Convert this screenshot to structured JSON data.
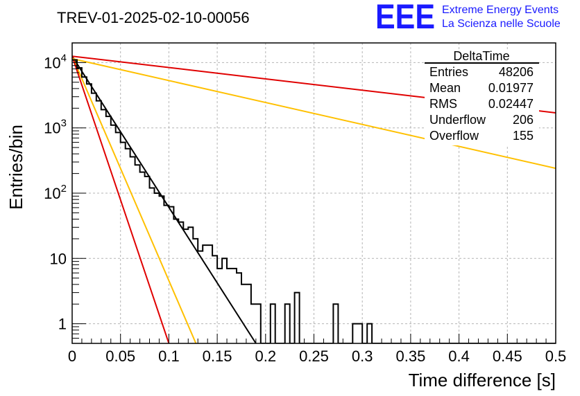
{
  "header": {
    "run_title": "TREV-01-2025-02-10-00056"
  },
  "logo": {
    "letters": "EEE",
    "line1": "Extreme Energy Events",
    "line2": "La Scienza nelle Scuole",
    "color": "#1a1aff"
  },
  "stats": {
    "name": "DeltaTime",
    "rows": [
      {
        "label": "Entries",
        "value": "48206"
      },
      {
        "label": "Mean",
        "value": "0.01977"
      },
      {
        "label": "RMS",
        "value": "0.02447"
      },
      {
        "label": "Underflow",
        "value": "206"
      },
      {
        "label": "Overflow",
        "value": "155"
      }
    ]
  },
  "chart_data": {
    "type": "line",
    "xlabel": "Time difference [s]",
    "ylabel": "Entries/bin",
    "xlim": [
      0,
      0.5
    ],
    "ylim": [
      0.5,
      20000
    ],
    "log_y": true,
    "grid": true,
    "x_ticks": [
      {
        "v": 0,
        "label": "0"
      },
      {
        "v": 0.05,
        "label": "0.05"
      },
      {
        "v": 0.1,
        "label": "0.1"
      },
      {
        "v": 0.15,
        "label": "0.15"
      },
      {
        "v": 0.2,
        "label": "0.2"
      },
      {
        "v": 0.25,
        "label": "0.25"
      },
      {
        "v": 0.3,
        "label": "0.3"
      },
      {
        "v": 0.35,
        "label": "0.35"
      },
      {
        "v": 0.4,
        "label": "0.4"
      },
      {
        "v": 0.45,
        "label": "0.45"
      },
      {
        "v": 0.5,
        "label": "0.5"
      }
    ],
    "y_ticks": [
      {
        "v": 1,
        "base": "1",
        "exp": ""
      },
      {
        "v": 10,
        "base": "10",
        "exp": ""
      },
      {
        "v": 100,
        "base": "10",
        "exp": "2"
      },
      {
        "v": 1000,
        "base": "10",
        "exp": "3"
      },
      {
        "v": 10000,
        "base": "10",
        "exp": "4"
      }
    ],
    "histogram": {
      "bin_width": 0.005,
      "color": "#000000",
      "counts": [
        11000,
        8300,
        6000,
        4700,
        3400,
        2600,
        1900,
        1500,
        1100,
        850,
        600,
        480,
        360,
        270,
        210,
        180,
        120,
        100,
        90,
        65,
        62,
        40,
        36,
        28,
        30,
        20,
        13,
        16,
        16,
        11,
        7,
        10,
        7,
        7,
        6,
        4,
        4,
        2,
        2,
        0.5,
        0.5,
        2,
        0.5,
        0.5,
        2,
        0.5,
        3,
        0.5,
        0.5,
        0.5,
        0.5,
        0.5,
        0.5,
        0.5,
        2,
        0.5,
        0.5,
        0.5,
        1,
        1,
        0.5,
        1,
        0.5,
        0.5,
        0.5,
        0.5,
        0.5,
        0.5,
        0.5,
        0.5,
        0.5,
        0.5,
        0.5,
        0.5,
        0.5,
        0.5,
        0.5,
        0.5,
        0.5,
        0.5,
        0.5,
        0.5,
        0.5,
        0.5,
        0.5,
        0.5,
        0.5,
        0.5,
        0.5,
        0.5,
        0.5,
        0.5,
        0.5,
        0.5,
        0.5,
        0.5,
        0.5,
        0.5,
        0.5,
        0.5
      ]
    },
    "fits": [
      {
        "color": "#000000",
        "points": [
          [
            0,
            12500
          ],
          [
            0.19,
            0.5
          ]
        ]
      },
      {
        "color": "#ffc000",
        "points": [
          [
            0,
            12500
          ],
          [
            0.128,
            0.5
          ]
        ]
      },
      {
        "color": "#e00000",
        "points": [
          [
            0,
            12500
          ],
          [
            0.1,
            0.5
          ]
        ]
      },
      {
        "color": "#ffc000",
        "points": [
          [
            0,
            11500
          ],
          [
            0.5,
            240
          ]
        ]
      },
      {
        "color": "#e00000",
        "points": [
          [
            0,
            12500
          ],
          [
            0.5,
            1700
          ]
        ]
      }
    ]
  }
}
